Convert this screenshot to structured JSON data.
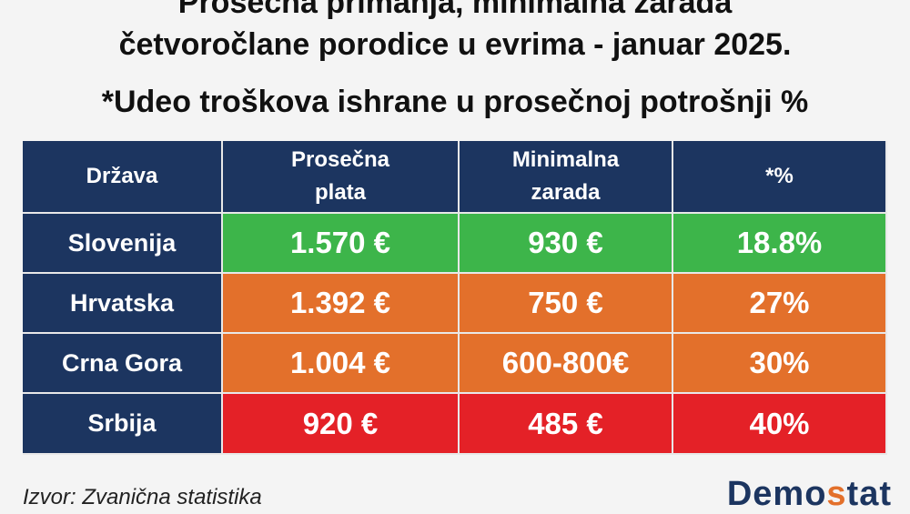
{
  "header": {
    "title_line1": "Prosečna primanja, minimalna zarada",
    "title_line2": "četvoročlane porodice u evrima - januar 2025.",
    "subtitle": "*Udeo troškova ishrane u prosečnoj potrošnji %"
  },
  "table": {
    "columns": [
      "Država",
      "Prosečna plata",
      "Minimalna zarada",
      "*%"
    ],
    "rows": [
      {
        "cells": [
          "Slovenija",
          "1.570 €",
          "930 €",
          "18.8%"
        ],
        "color": "#3db54a"
      },
      {
        "cells": [
          "Hrvatska",
          "1.392 €",
          "750 €",
          "27%"
        ],
        "color": "#e3702b"
      },
      {
        "cells": [
          "Crna Gora",
          "1.004 €",
          "600-800€",
          "30%"
        ],
        "color": "#e3702b"
      },
      {
        "cells": [
          "Srbija",
          "920 €",
          "485 €",
          "40%"
        ],
        "color": "#e42127"
      }
    ]
  },
  "footer": {
    "source": "Izvor: Zvanična statistika",
    "logo": [
      "Demo",
      "s",
      "tat"
    ]
  }
}
